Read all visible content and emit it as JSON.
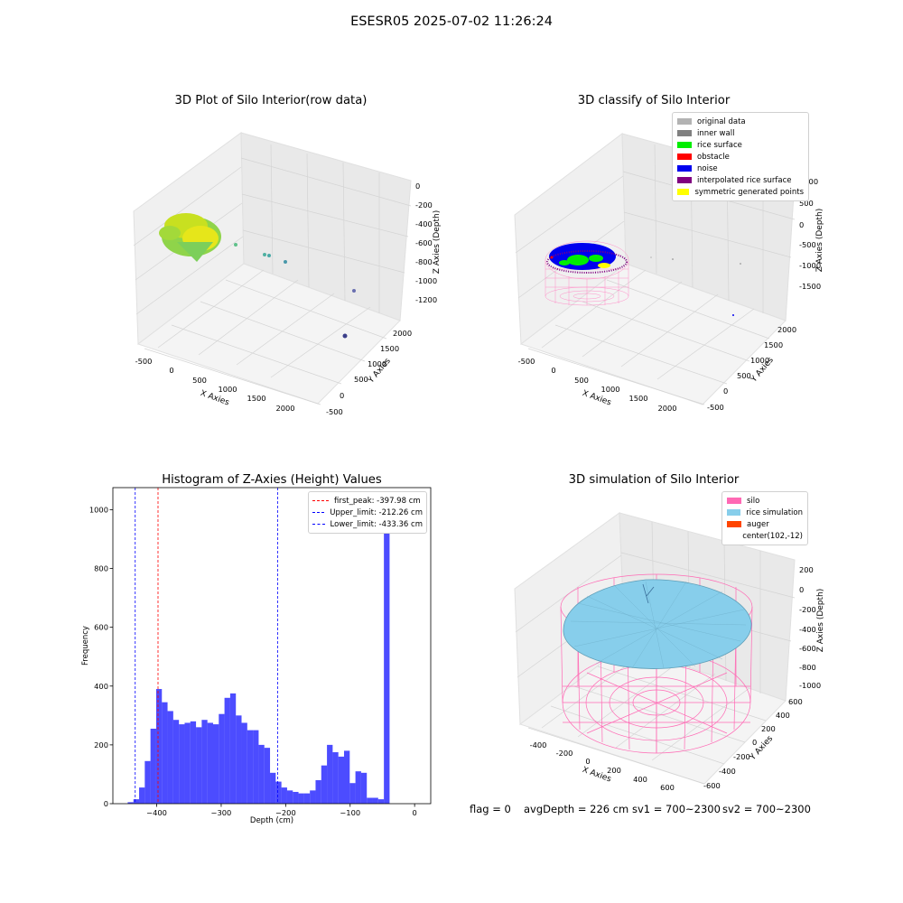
{
  "suptitle": "ESESR05 2025-07-02 11:26:24",
  "panels": {
    "raw": {
      "title": "3D Plot of Silo Interior(row data)",
      "xlabel": "X Axies",
      "ylabel": "Y Axies",
      "zlabel": "Z Axies (Depth)",
      "xticks": [
        "-500",
        "0",
        "500",
        "1000",
        "1500",
        "2000"
      ],
      "yticks": [
        "-500",
        "0",
        "500",
        "1000",
        "1500",
        "2000"
      ],
      "zticks": [
        "0",
        "-200",
        "-400",
        "-600",
        "-800",
        "-1000",
        "-1200"
      ]
    },
    "classify": {
      "title": "3D classify of Silo Interior",
      "xlabel": "X Axies",
      "ylabel": "Y Axies",
      "zlabel": "Z Axies (Depth)",
      "xticks": [
        "-500",
        "0",
        "500",
        "1000",
        "1500",
        "2000"
      ],
      "yticks": [
        "-500",
        "0",
        "500",
        "1000",
        "1500",
        "2000"
      ],
      "zticks": [
        "1000",
        "500",
        "0",
        "-500",
        "-1000",
        "-1500"
      ],
      "legend": [
        {
          "label": "original data",
          "color": "#b3b3b3"
        },
        {
          "label": "inner wall",
          "color": "#808080"
        },
        {
          "label": "rice surface",
          "color": "#00ee00"
        },
        {
          "label": "obstacle",
          "color": "#ff0000"
        },
        {
          "label": "noise",
          "color": "#0000ee"
        },
        {
          "label": "interpolated rice surface",
          "color": "#800080"
        },
        {
          "label": "symmetric generated points",
          "color": "#ffff00"
        }
      ]
    },
    "sim": {
      "title": "3D simulation of Silo Interior",
      "xlabel": "X Axies",
      "ylabel": "Y Axies",
      "zlabel": "Z Axies (Depth)",
      "xticks": [
        "-400",
        "-200",
        "0",
        "200",
        "400",
        "600"
      ],
      "yticks": [
        "600",
        "400",
        "200",
        "0",
        "-200",
        "-400",
        "-600"
      ],
      "zticks": [
        "200",
        "0",
        "-200",
        "-400",
        "-600",
        "-800",
        "-1000"
      ],
      "legend": [
        {
          "label": "silo",
          "color": "#ff69b4"
        },
        {
          "label": "rice simulation",
          "color": "#87ceeb"
        },
        {
          "label": "auger",
          "color": "#ff4500"
        },
        {
          "label": "center(102,-12)",
          "color": ""
        }
      ]
    }
  },
  "chart_data": {
    "type": "bar",
    "title": "Histogram of Z-Axies (Height) Values",
    "xlabel": "Depth (cm)",
    "ylabel": "Frequency",
    "xlim": [
      -468,
      25
    ],
    "ylim": [
      0,
      1075
    ],
    "xticks": [
      -400,
      -300,
      -200,
      -100,
      0
    ],
    "yticks": [
      0,
      200,
      400,
      600,
      800,
      1000
    ],
    "bin_start": -445,
    "bin_width": 8.83,
    "values": [
      5,
      15,
      55,
      145,
      255,
      390,
      345,
      315,
      285,
      270,
      275,
      280,
      260,
      285,
      275,
      270,
      305,
      360,
      375,
      300,
      275,
      250,
      250,
      200,
      190,
      105,
      75,
      55,
      45,
      40,
      35,
      35,
      45,
      80,
      130,
      200,
      175,
      160,
      180,
      70,
      110,
      105,
      20,
      20,
      15,
      1020
    ],
    "color": "#0000ff",
    "vlines": [
      {
        "label": "first_peak: -397.98 cm",
        "x": -397.98,
        "color": "#ff0000"
      },
      {
        "label": "Upper_limit: -212.26 cm",
        "x": -212.26,
        "color": "#0000ff"
      },
      {
        "label": "Lower_limit: -433.36 cm",
        "x": -433.36,
        "color": "#0000ff"
      }
    ]
  },
  "footer": {
    "flag": "flag = 0",
    "avg": "avgDepth = 226 cm",
    "sv1": "sv1 = 700~2300",
    "sv2": "sv2 = 700~2300"
  }
}
